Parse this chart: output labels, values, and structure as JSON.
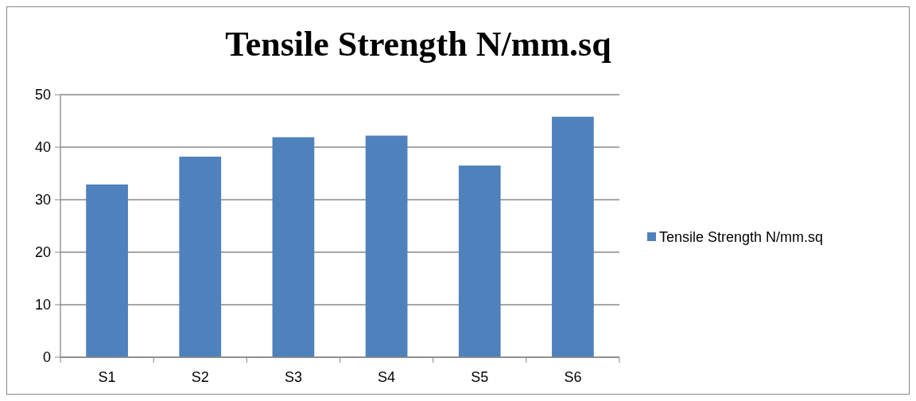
{
  "chart_data": {
    "type": "bar",
    "title": "Tensile Strength N/mm.sq",
    "categories": [
      "S1",
      "S2",
      "S3",
      "S4",
      "S5",
      "S6"
    ],
    "series": [
      {
        "name": "Tensile Strength N/mm.sq",
        "color": "#4f81bd",
        "values": [
          32.9,
          38.2,
          41.9,
          42.2,
          36.5,
          45.8
        ]
      }
    ],
    "ylim": [
      0,
      50
    ],
    "yticks": [
      0,
      10,
      20,
      30,
      40,
      50
    ],
    "grid": "y",
    "legend": "right"
  }
}
